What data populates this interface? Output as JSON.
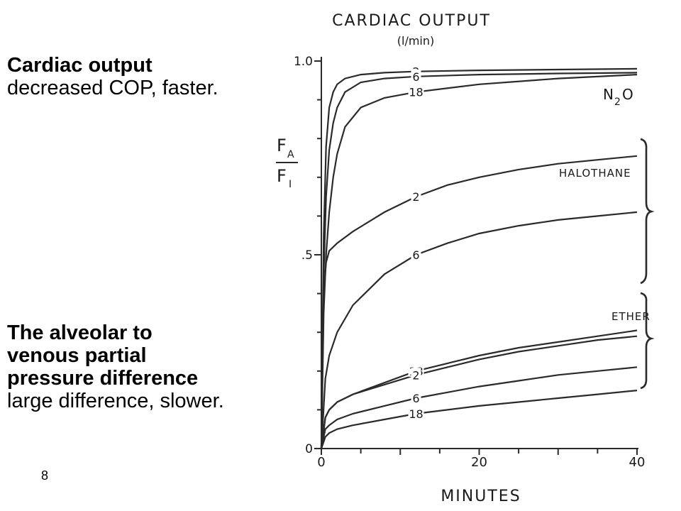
{
  "slide": {
    "top_heading": "Cardiac output",
    "top_text": "decreased COP, faster.",
    "bottom_heading_lines": [
      "The alveolar to",
      "venous partial",
      "pressure difference"
    ],
    "bottom_text": "large difference, slower.",
    "page_number": "8"
  },
  "chart_data": {
    "type": "line",
    "title": "CARDIAC OUTPUT",
    "subtitle": "(l/min)",
    "xlabel": "MINUTES",
    "ylabel": "FA/FI",
    "xlim": [
      0,
      40
    ],
    "ylim": [
      0,
      1.0
    ],
    "x_ticks": [
      "0",
      "20",
      "40"
    ],
    "y_ticks": [
      "0",
      ".5",
      "1.0"
    ],
    "group_labels": [
      "N2O",
      "HALOTHANE",
      "ETHER"
    ],
    "series": [
      {
        "group": "N2O",
        "name": "2",
        "x": [
          0,
          0.3,
          0.6,
          1,
          1.5,
          2,
          3,
          5,
          8,
          12,
          20,
          30,
          40
        ],
        "y": [
          0,
          0.55,
          0.78,
          0.88,
          0.92,
          0.94,
          0.955,
          0.965,
          0.97,
          0.973,
          0.976,
          0.978,
          0.98
        ]
      },
      {
        "group": "N2O",
        "name": "6",
        "x": [
          0,
          0.3,
          0.6,
          1,
          1.5,
          2,
          3,
          5,
          8,
          12,
          20,
          30,
          40
        ],
        "y": [
          0,
          0.45,
          0.65,
          0.77,
          0.84,
          0.88,
          0.92,
          0.945,
          0.955,
          0.96,
          0.965,
          0.968,
          0.97
        ]
      },
      {
        "group": "N2O",
        "name": "18",
        "x": [
          0,
          0.3,
          0.6,
          1,
          1.5,
          2,
          3,
          5,
          8,
          12,
          20,
          30,
          40
        ],
        "y": [
          0,
          0.35,
          0.5,
          0.61,
          0.7,
          0.76,
          0.83,
          0.88,
          0.905,
          0.92,
          0.94,
          0.955,
          0.965
        ]
      },
      {
        "group": "HALOTHANE",
        "name": "2",
        "x": [
          0,
          0.3,
          0.6,
          1,
          2,
          4,
          8,
          12,
          16,
          20,
          25,
          30,
          35,
          40
        ],
        "y": [
          0,
          0.4,
          0.48,
          0.51,
          0.53,
          0.56,
          0.61,
          0.65,
          0.68,
          0.7,
          0.72,
          0.735,
          0.745,
          0.755
        ]
      },
      {
        "group": "HALOTHANE",
        "name": "6",
        "x": [
          0,
          0.5,
          1,
          2,
          4,
          8,
          12,
          16,
          20,
          25,
          30,
          35,
          40
        ],
        "y": [
          0,
          0.18,
          0.24,
          0.3,
          0.37,
          0.45,
          0.5,
          0.53,
          0.555,
          0.575,
          0.59,
          0.6,
          0.61
        ]
      },
      {
        "group": "ETHER",
        "name": "18",
        "x": [
          0,
          0.5,
          1,
          2,
          4,
          8,
          12,
          16,
          20,
          25,
          30,
          35,
          40
        ],
        "y": [
          0,
          0.08,
          0.1,
          0.12,
          0.14,
          0.17,
          0.2,
          0.22,
          0.24,
          0.26,
          0.275,
          0.29,
          0.305
        ]
      },
      {
        "group": "ETHER",
        "name": "2",
        "x": [
          0,
          0.5,
          1,
          2,
          4,
          8,
          12,
          16,
          20,
          25,
          30,
          35,
          40
        ],
        "y": [
          0,
          0.08,
          0.1,
          0.12,
          0.14,
          0.165,
          0.19,
          0.21,
          0.23,
          0.25,
          0.265,
          0.28,
          0.29
        ]
      },
      {
        "group": "ETHER",
        "name": "6",
        "x": [
          0,
          0.5,
          1,
          2,
          4,
          8,
          12,
          16,
          20,
          25,
          30,
          35,
          40
        ],
        "y": [
          0,
          0.05,
          0.06,
          0.075,
          0.09,
          0.11,
          0.13,
          0.145,
          0.16,
          0.175,
          0.19,
          0.2,
          0.21
        ]
      },
      {
        "group": "ETHER",
        "name": "18",
        "x": [
          0,
          0.5,
          1,
          2,
          4,
          8,
          12,
          16,
          20,
          25,
          30,
          35,
          40
        ],
        "y": [
          0,
          0.03,
          0.04,
          0.05,
          0.06,
          0.075,
          0.09,
          0.1,
          0.11,
          0.12,
          0.13,
          0.14,
          0.15
        ]
      }
    ]
  }
}
